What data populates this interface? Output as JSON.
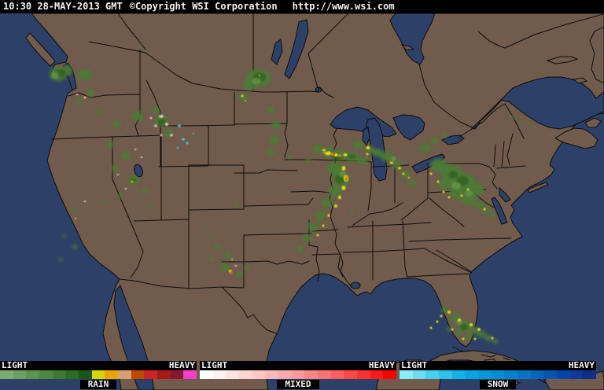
{
  "header": {
    "timestamp": "10:30 28-MAY-2013 GMT",
    "copyright": "©Copyright WSI Corporation",
    "url": "http://www.wsi.com"
  },
  "legend": {
    "sections": [
      {
        "name": "RAIN",
        "light": "LIGHT",
        "heavy": "HEAVY",
        "colors": [
          "#7cac70",
          "#6ca05e",
          "#5c944c",
          "#4c883c",
          "#3c7c2c",
          "#2c6c20",
          "#1c5814",
          "#d4d400",
          "#eaa400",
          "#d8a070",
          "#bc4a00",
          "#cc2424",
          "#aa1818",
          "#8c1630",
          "#fa3cc8"
        ]
      },
      {
        "name": "MIXED",
        "light": "LIGHT",
        "heavy": "HEAVY",
        "colors": [
          "#ffffff",
          "#fff0f0",
          "#ffe2e2",
          "#ffd4d4",
          "#ffc6c6",
          "#ffb8b8",
          "#ffaaaa",
          "#ff9898",
          "#ff8686",
          "#ff7272",
          "#ff5e5e",
          "#ff4848",
          "#ff3232",
          "#ff1a1a",
          "#fa0202"
        ]
      },
      {
        "name": "SNOW",
        "light": "LIGHT",
        "heavy": "HEAVY",
        "colors": [
          "#86ecf8",
          "#66def4",
          "#48d0f0",
          "#2cc2ec",
          "#10b2e8",
          "#00a4e2",
          "#0098da",
          "#008cd2",
          "#0080ca",
          "#0074c2",
          "#0066ba",
          "#0056b0",
          "#0046a8",
          "#1238a0",
          "#122c8a"
        ]
      }
    ]
  },
  "palette": {
    "header_bg": "#000000",
    "header_text": "#f2f2f2",
    "ocean": "#2d4067",
    "land": "#705b4c",
    "border": "#0d0d0d",
    "legend_bg": "#000000",
    "legend_text": "#f2f2f2",
    "rg": "#4b7c36",
    "rgd": "#2f5c1f",
    "rgl": "#6f9e52",
    "ry": "#e2d414",
    "ro": "#e39020",
    "rr": "#cc2a16",
    "rp": "#ecc6c6",
    "rc": "#46c8ee"
  }
}
